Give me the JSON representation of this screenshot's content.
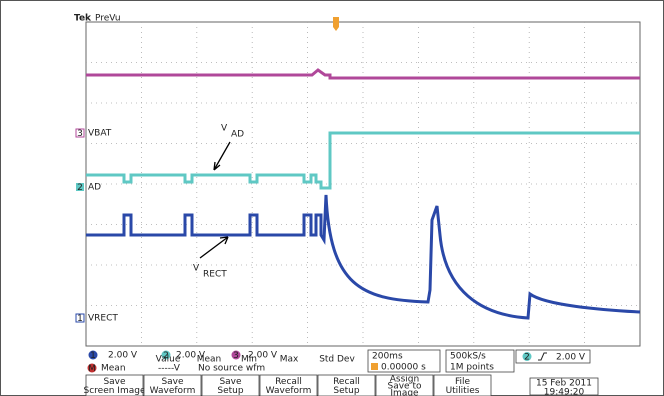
{
  "header": {
    "brand": "Tek",
    "mode": "PreVu"
  },
  "trace_labels": [
    {
      "marker": "3",
      "label": "VBAT"
    },
    {
      "marker": "2",
      "label": "AD"
    },
    {
      "marker": "1",
      "label": "VRECT"
    }
  ],
  "annotations": [
    {
      "main": "V",
      "sub": "AD"
    },
    {
      "main": "V",
      "sub": "RECT"
    }
  ],
  "channels": [
    {
      "number": "1",
      "scale": "2.00 V"
    },
    {
      "number": "2",
      "scale": "2.00 V"
    },
    {
      "number": "3",
      "scale": "2.00 V"
    }
  ],
  "timebase": {
    "scale": "200ms",
    "position": "0.00000 s"
  },
  "acquisition": {
    "rate": "500kS/s",
    "length": "1M points"
  },
  "trigger": {
    "channel": "2",
    "level": "2.00 V"
  },
  "measurements": {
    "marker": "M",
    "label": "Mean",
    "columns": [
      "Value",
      "Mean",
      "Min",
      "Max",
      "Std Dev"
    ],
    "value": "-----V",
    "status": "No source wfm"
  },
  "buttons": [
    [
      "Save",
      "Screen Image"
    ],
    [
      "Save",
      "Waveform"
    ],
    [
      "Save",
      "Setup"
    ],
    [
      "Recall",
      "Waveform"
    ],
    [
      "Recall",
      "Setup"
    ],
    [
      "Assign",
      "Save to",
      "Image"
    ],
    [
      "File",
      "Utilities"
    ]
  ],
  "datetime": {
    "date": "15 Feb 2011",
    "time": "19:49:20"
  }
}
